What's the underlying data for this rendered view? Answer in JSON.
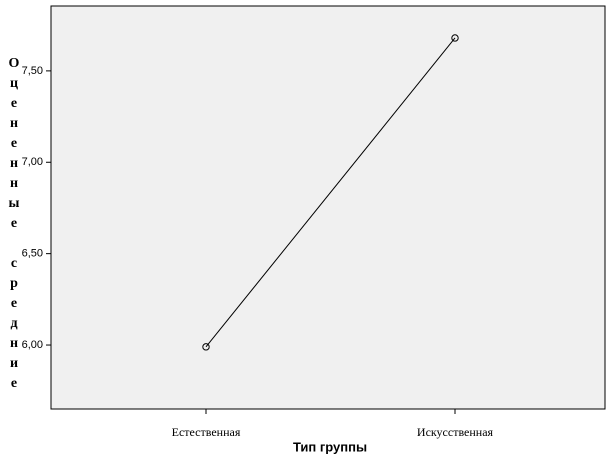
{
  "chart_data": {
    "type": "line",
    "x_label": "Тип группы",
    "y_label": "Оцененные средние",
    "categories": [
      "Естественная",
      "Искусственная"
    ],
    "values": [
      5.99,
      7.68
    ],
    "color": "#000000",
    "ylim": [
      5.65,
      7.855
    ],
    "yticks": [
      {
        "value": 6.0,
        "label": "6,00"
      },
      {
        "value": 6.5,
        "label": "6,50"
      },
      {
        "value": 7.0,
        "label": "7,00"
      },
      {
        "value": 7.5,
        "label": "7,50"
      }
    ]
  }
}
